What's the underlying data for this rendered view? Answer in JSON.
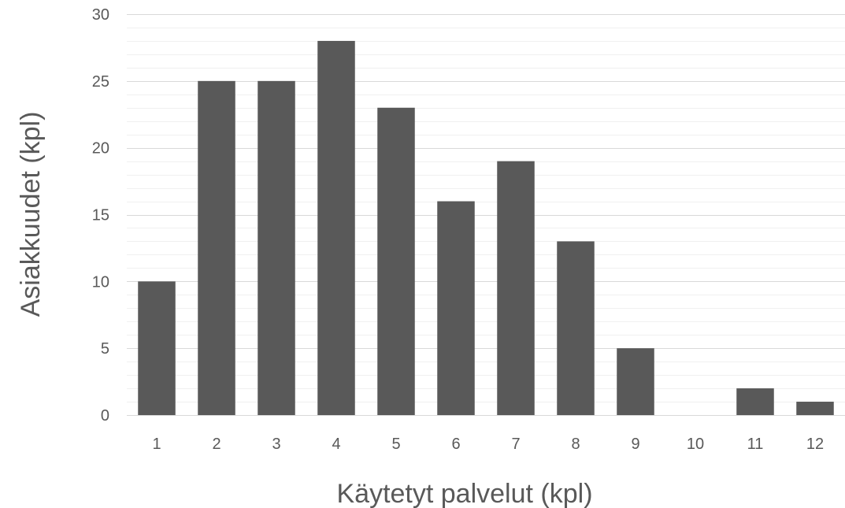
{
  "chart_data": {
    "type": "bar",
    "title": "",
    "xlabel": "Käytetyt palvelut (kpl)",
    "ylabel": "Asiakkuudet (kpl)",
    "categories": [
      "1",
      "2",
      "3",
      "4",
      "5",
      "6",
      "7",
      "8",
      "9",
      "10",
      "11",
      "12"
    ],
    "values": [
      10,
      25,
      25,
      28,
      23,
      16,
      19,
      13,
      5,
      0,
      2,
      1
    ],
    "ylim": [
      0,
      30
    ],
    "yticks": [
      "0",
      "5",
      "10",
      "15",
      "20",
      "25",
      "30"
    ],
    "minor_gridline_step": 1,
    "grid": true,
    "legend": "none",
    "colors": {
      "bar": "#595959",
      "major_grid": "#d9d9d9",
      "minor_grid": "#f0f0f0",
      "text": "#595959"
    }
  }
}
